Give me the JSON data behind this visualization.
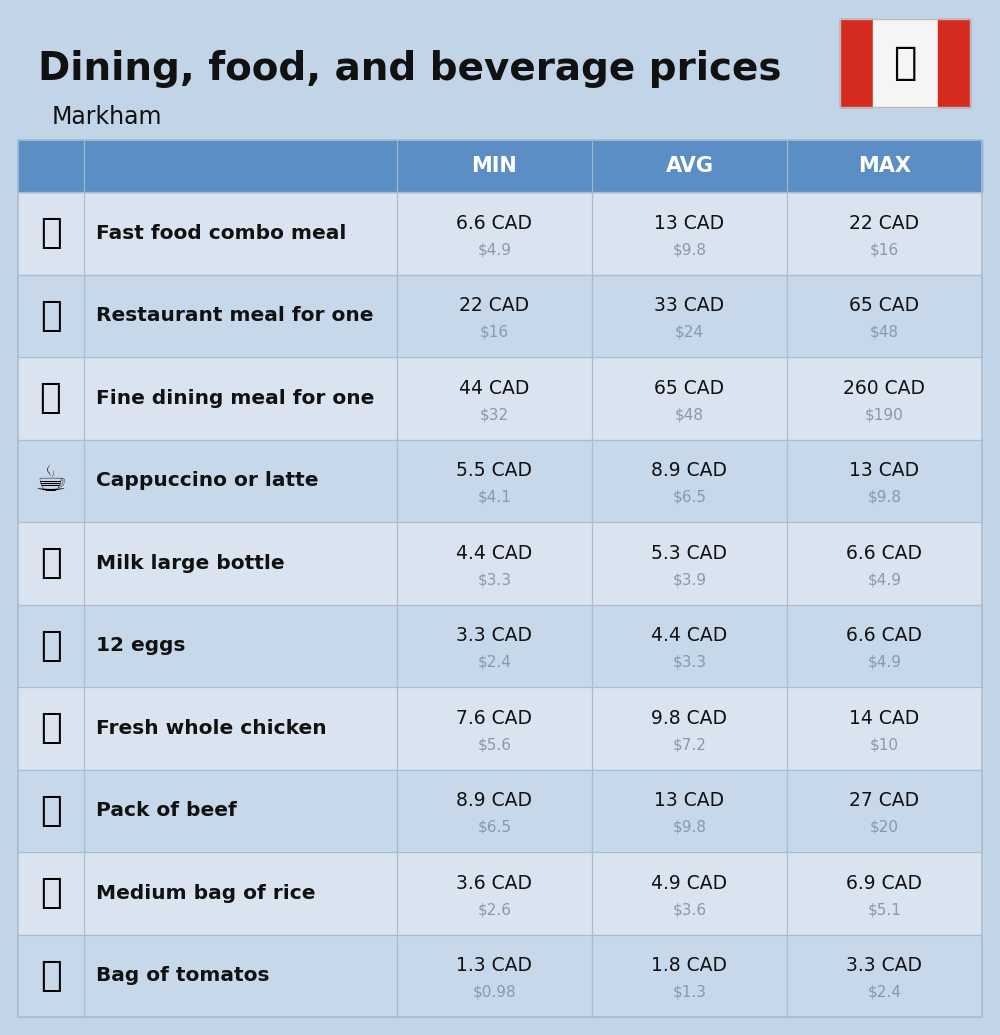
{
  "title": "Dining, food, and beverage prices",
  "subtitle": "Markham",
  "bg_color": "#c2d4e8",
  "header_color": "#5b8ec4",
  "header_text_color": "#ffffff",
  "row_color_light": "#dae4f0",
  "row_color_dark": "#c8d8eb",
  "text_color": "#111111",
  "secondary_text_color": "#8899aa",
  "divider_color": "#aabdd0",
  "col_headers": [
    "MIN",
    "AVG",
    "MAX"
  ],
  "icon_texts": [
    "🍔",
    "🍳",
    "🍽️",
    "☕",
    "🥛",
    "🥚",
    "🐔",
    "🥩",
    "🍚",
    "🍅"
  ],
  "rows": [
    {
      "label": "Fast food combo meal",
      "min_cad": "6.6 CAD",
      "min_usd": "$4.9",
      "avg_cad": "13 CAD",
      "avg_usd": "$9.8",
      "max_cad": "22 CAD",
      "max_usd": "$16"
    },
    {
      "label": "Restaurant meal for one",
      "min_cad": "22 CAD",
      "min_usd": "$16",
      "avg_cad": "33 CAD",
      "avg_usd": "$24",
      "max_cad": "65 CAD",
      "max_usd": "$48"
    },
    {
      "label": "Fine dining meal for one",
      "min_cad": "44 CAD",
      "min_usd": "$32",
      "avg_cad": "65 CAD",
      "avg_usd": "$48",
      "max_cad": "260 CAD",
      "max_usd": "$190"
    },
    {
      "label": "Cappuccino or latte",
      "min_cad": "5.5 CAD",
      "min_usd": "$4.1",
      "avg_cad": "8.9 CAD",
      "avg_usd": "$6.5",
      "max_cad": "13 CAD",
      "max_usd": "$9.8"
    },
    {
      "label": "Milk large bottle",
      "min_cad": "4.4 CAD",
      "min_usd": "$3.3",
      "avg_cad": "5.3 CAD",
      "avg_usd": "$3.9",
      "max_cad": "6.6 CAD",
      "max_usd": "$4.9"
    },
    {
      "label": "12 eggs",
      "min_cad": "3.3 CAD",
      "min_usd": "$2.4",
      "avg_cad": "4.4 CAD",
      "avg_usd": "$3.3",
      "max_cad": "6.6 CAD",
      "max_usd": "$4.9"
    },
    {
      "label": "Fresh whole chicken",
      "min_cad": "7.6 CAD",
      "min_usd": "$5.6",
      "avg_cad": "9.8 CAD",
      "avg_usd": "$7.2",
      "max_cad": "14 CAD",
      "max_usd": "$10"
    },
    {
      "label": "Pack of beef",
      "min_cad": "8.9 CAD",
      "min_usd": "$6.5",
      "avg_cad": "13 CAD",
      "avg_usd": "$9.8",
      "max_cad": "27 CAD",
      "max_usd": "$20"
    },
    {
      "label": "Medium bag of rice",
      "min_cad": "3.6 CAD",
      "min_usd": "$2.6",
      "avg_cad": "4.9 CAD",
      "avg_usd": "$3.6",
      "max_cad": "6.9 CAD",
      "max_usd": "$5.1"
    },
    {
      "label": "Bag of tomatos",
      "min_cad": "1.3 CAD",
      "min_usd": "$0.98",
      "avg_cad": "1.8 CAD",
      "avg_usd": "$1.3",
      "max_cad": "3.3 CAD",
      "max_usd": "$2.4"
    }
  ],
  "flag_left_color": "#D52B1E",
  "flag_right_color": "#D52B1E",
  "flag_white_color": "#F5F5F5",
  "flag_maple_color": "#D52B1E"
}
